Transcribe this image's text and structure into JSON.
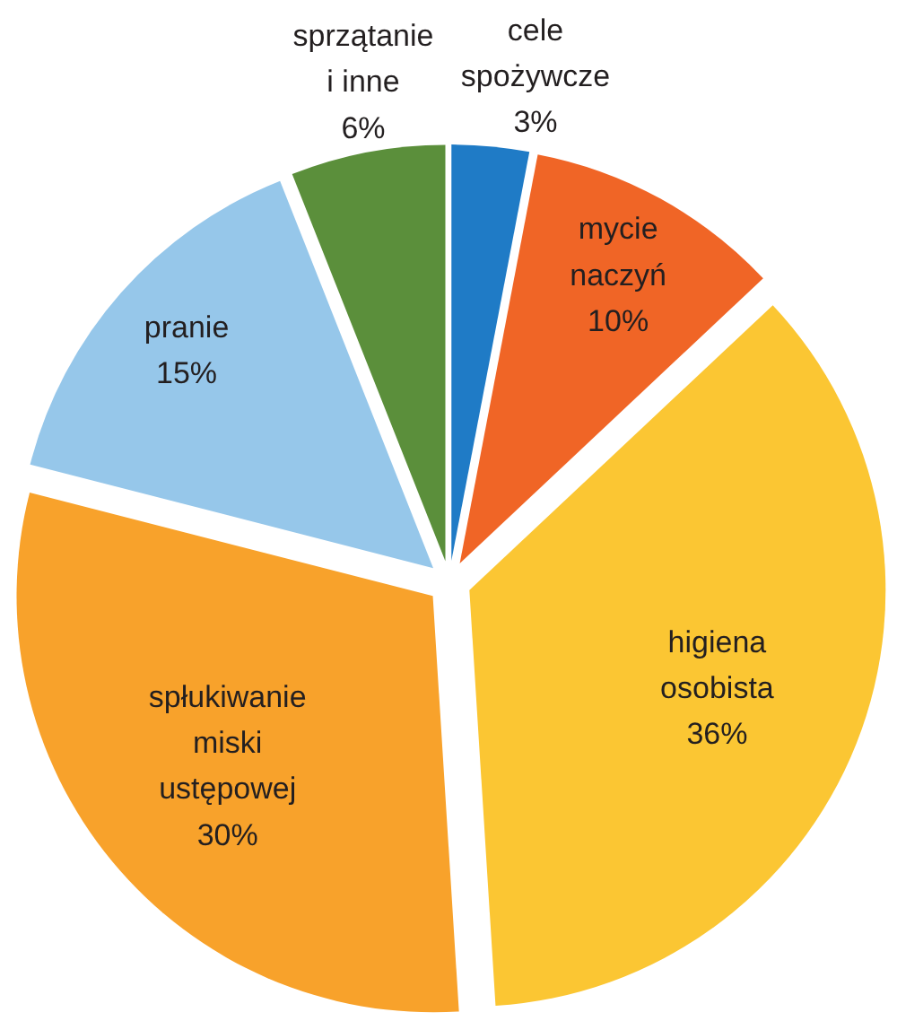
{
  "chart_data": {
    "type": "pie",
    "categories": [
      "cele spożywcze",
      "mycie naczyń",
      "higiena osobista",
      "spłukiwanie miski ustępowej",
      "pranie",
      "sprzątanie i inne"
    ],
    "values": [
      3,
      10,
      36,
      30,
      15,
      6
    ],
    "value_labels": [
      "3%",
      "10%",
      "36%",
      "30%",
      "15%",
      "6%"
    ],
    "colors": [
      "#1f7bc6",
      "#f06526",
      "#fbc633",
      "#f8a22b",
      "#96c7ea",
      "#5b8f3b"
    ]
  }
}
